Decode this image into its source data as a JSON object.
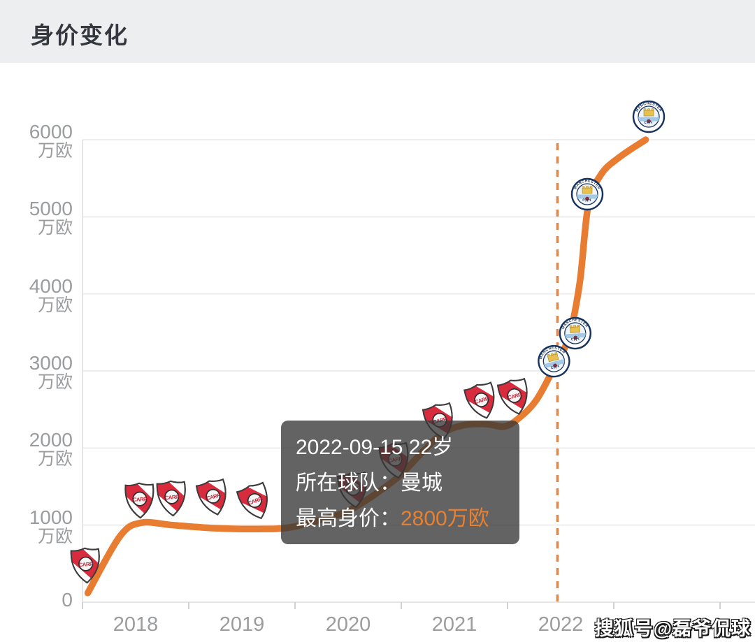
{
  "header": {
    "title": "身价变化"
  },
  "watermark": {
    "text": "搜狐号@磊爷侃球"
  },
  "tooltip": {
    "line1": "2022-09-15 22岁",
    "team_label": "所在球队：",
    "team_value": "曼城",
    "value_label": "最高身价：",
    "value_value": "2800万欧"
  },
  "colors": {
    "header_bg": "#eceef0",
    "title_text": "#34383e",
    "line": "#e87c30",
    "dashed_line": "#db8a54",
    "grid": "#ededed",
    "axis_line": "#e3e5e6",
    "tick": "#cfd1d2",
    "axis_text": "#9a9c9e",
    "tooltip_bg": "rgba(55,55,55,0.78)",
    "tooltip_text": "#ffffff",
    "highlight_value": "#e8802f",
    "watermark_text": "#ffffff"
  },
  "chart_data": {
    "type": "line",
    "title": "身价变化",
    "xlabel": "",
    "ylabel": "万欧",
    "x_axis": {
      "tick_labels": [
        "2018",
        "2019",
        "2020",
        "2021",
        "2022"
      ],
      "range_years": [
        2018,
        2024
      ]
    },
    "y_axis": {
      "unit": "万欧",
      "tick_values": [
        6000,
        5000,
        4000,
        3000,
        2000,
        1000,
        0
      ],
      "ylim": [
        0,
        6300
      ]
    },
    "grid": "horizontal-only",
    "legend": "none",
    "series": [
      {
        "name": "身价(万欧)",
        "points": [
          [
            2018.05,
            120
          ],
          [
            2018.35,
            850
          ],
          [
            2018.55,
            1030
          ],
          [
            2018.85,
            1000
          ],
          [
            2019.25,
            960
          ],
          [
            2019.65,
            950
          ],
          [
            2019.95,
            970
          ],
          [
            2020.3,
            1090
          ],
          [
            2020.55,
            1220
          ],
          [
            2020.95,
            1600
          ],
          [
            2021.2,
            1950
          ],
          [
            2021.4,
            2200
          ],
          [
            2021.6,
            2300
          ],
          [
            2021.8,
            2310
          ],
          [
            2021.97,
            2280
          ],
          [
            2022.1,
            2380
          ],
          [
            2022.27,
            2620
          ],
          [
            2022.44,
            3050
          ],
          [
            2022.58,
            3450
          ],
          [
            2022.68,
            4150
          ],
          [
            2022.76,
            5150
          ],
          [
            2022.88,
            5550
          ],
          [
            2023.05,
            5770
          ],
          [
            2023.3,
            6000
          ]
        ]
      }
    ],
    "markers": [
      {
        "team": "河床",
        "badge": "river-plate",
        "t": 2018.03,
        "value": 130
      },
      {
        "team": "河床",
        "badge": "river-plate",
        "t": 2018.54,
        "value": 1030
      },
      {
        "team": "河床",
        "badge": "river-plate",
        "t": 2018.84,
        "value": 1000
      },
      {
        "team": "河床",
        "badge": "river-plate",
        "t": 2019.24,
        "value": 960
      },
      {
        "team": "河床",
        "badge": "river-plate",
        "t": 2019.63,
        "value": 950
      },
      {
        "team": "河床",
        "badge": "river-plate",
        "t": 2020.55,
        "value": 1220
      },
      {
        "team": "河床",
        "badge": "river-plate",
        "t": 2020.95,
        "value": 1600
      },
      {
        "team": "河床",
        "badge": "river-plate",
        "t": 2021.37,
        "value": 2180
      },
      {
        "team": "河床",
        "badge": "river-plate",
        "t": 2021.76,
        "value": 2300
      },
      {
        "team": "河床",
        "badge": "river-plate",
        "t": 2022.07,
        "value": 2360
      },
      {
        "team": "曼城",
        "badge": "man-city",
        "t": 2022.44,
        "value": 3050
      },
      {
        "team": "曼城",
        "badge": "man-city",
        "t": 2022.64,
        "value": 3600
      },
      {
        "team": "曼城",
        "badge": "man-city",
        "t": 2022.75,
        "value": 5100
      },
      {
        "team": "曼城",
        "badge": "man-city",
        "t": 2023.33,
        "value": 6010
      }
    ],
    "badge_texts": {
      "river_plate_monogram": "CARP",
      "man_city_top": "MANCHESTER",
      "man_city_bottom": "CITY"
    },
    "current_date_marker": {
      "date": "2022-09-15",
      "t": 2022.47
    }
  }
}
